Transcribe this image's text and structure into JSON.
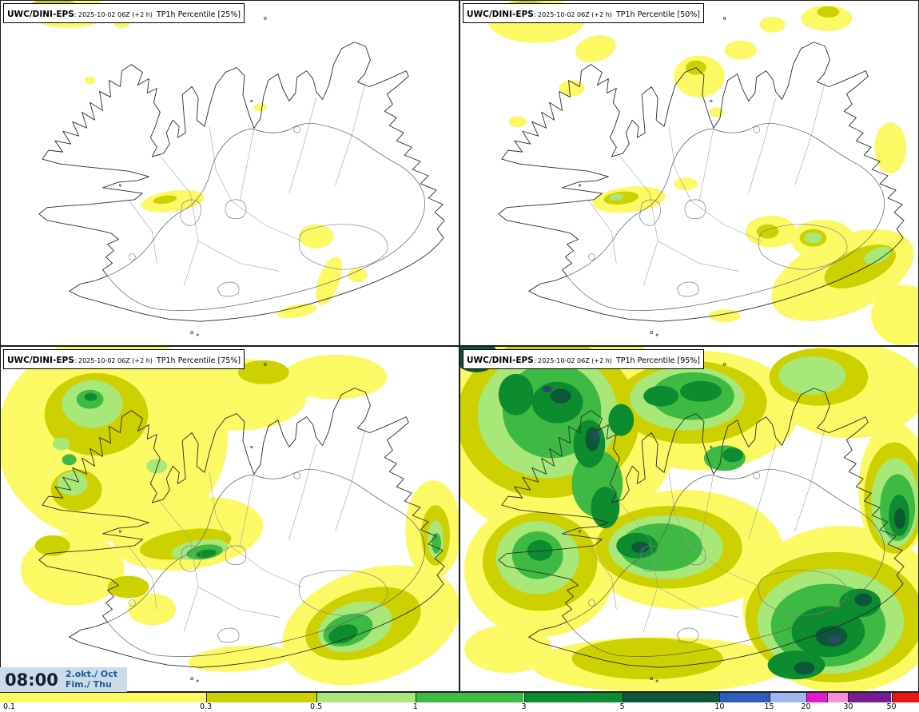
{
  "panels": [
    {
      "model": "UWC/DINI-EPS",
      "meta": ": 2025-10-02 06Z (+2 h)",
      "param": "TP1h Percentile [25%]"
    },
    {
      "model": "UWC/DINI-EPS",
      "meta": ": 2025-10-02 06Z (+2 h)",
      "param": "TP1h Percentile [50%]"
    },
    {
      "model": "UWC/DINI-EPS",
      "meta": ": 2025-10-02 06Z (+2 h)",
      "param": "TP1h Percentile [75%]"
    },
    {
      "model": "UWC/DINI-EPS",
      "meta": ": 2025-10-02 06Z (+2 h)",
      "param": "TP1h Percentile [95%]"
    }
  ],
  "time_overlay": {
    "time": "08:00",
    "date": "2.okt./ Oct",
    "day": "Fim./ Thu"
  },
  "palette": {
    "yellow": "#fbf964",
    "olive": "#cdd100",
    "light_green": "#a8e878",
    "green": "#3eba44",
    "dark_green": "#0c8b2f",
    "darkest_green": "#0b5737",
    "blue": "#2a5dbc",
    "light_blue": "#9db7f1",
    "magenta": "#e01ad2",
    "pink": "#f590d8",
    "purple": "#7a1a92",
    "red": "#ea1414",
    "navy_spot": "#2c4a63"
  },
  "colorbar": {
    "ticks": [
      {
        "label": "0.1",
        "pos": 1.0
      },
      {
        "label": "0.3",
        "pos": 22.4
      },
      {
        "label": "0.5",
        "pos": 34.4
      },
      {
        "label": "1",
        "pos": 45.2
      },
      {
        "label": "3",
        "pos": 57.0
      },
      {
        "label": "5",
        "pos": 67.7
      },
      {
        "label": "10",
        "pos": 78.3
      },
      {
        "label": "15",
        "pos": 83.7
      },
      {
        "label": "20",
        "pos": 87.7
      },
      {
        "label": "30",
        "pos": 92.3
      },
      {
        "label": "50",
        "pos": 97.0
      }
    ],
    "segments": [
      {
        "to": 22.4,
        "color": "yellow"
      },
      {
        "to": 34.4,
        "color": "olive"
      },
      {
        "to": 45.2,
        "color": "light_green"
      },
      {
        "to": 57.0,
        "color": "green"
      },
      {
        "to": 67.7,
        "color": "dark_green"
      },
      {
        "to": 78.3,
        "color": "darkest_green"
      },
      {
        "to": 83.7,
        "color": "blue"
      },
      {
        "to": 87.7,
        "color": "light_blue"
      },
      {
        "to": 90.0,
        "color": "magenta"
      },
      {
        "to": 92.3,
        "color": "pink"
      },
      {
        "to": 97.0,
        "color": "purple"
      },
      {
        "to": 100.0,
        "color": "red"
      }
    ]
  }
}
